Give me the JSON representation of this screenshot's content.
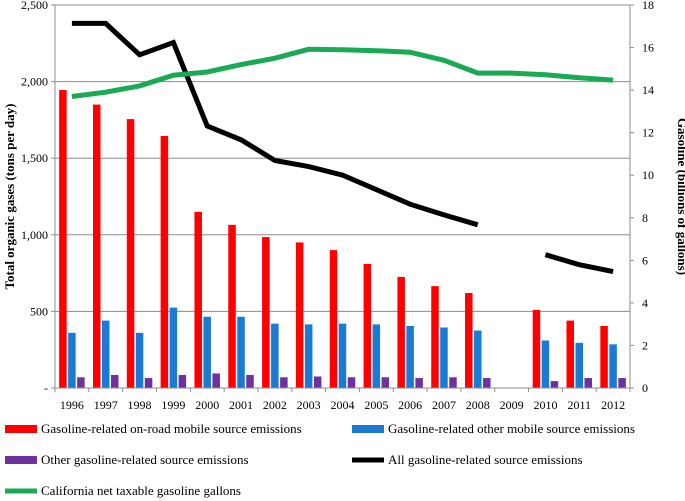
{
  "chart_data": {
    "type": "bar",
    "categories": [
      "1996",
      "1997",
      "1998",
      "1999",
      "2000",
      "2001",
      "2002",
      "2003",
      "2004",
      "2005",
      "2006",
      "2007",
      "2008",
      "2009",
      "2010",
      "2011",
      "2012"
    ],
    "y_left": {
      "label": "Total organic gases  (tons per day)",
      "range": [
        0,
        2500
      ],
      "ticks": [
        0,
        500,
        1000,
        1500,
        2000,
        2500
      ],
      "tick_labels": [
        "-",
        "500",
        "1,000",
        "1,500",
        "2,000",
        "2,500"
      ]
    },
    "y_right": {
      "label": "Gasoline (billions of gallons)",
      "range": [
        0,
        18
      ],
      "ticks": [
        0,
        2,
        4,
        6,
        8,
        10,
        12,
        14,
        16,
        18
      ],
      "tick_labels": [
        "0",
        "2",
        "4",
        "6",
        "8",
        "10",
        "12",
        "14",
        "16",
        "18"
      ]
    },
    "gridlines": true,
    "series": [
      {
        "name": "Gasoline-related on-road mobile source emissions",
        "kind": "bar",
        "axis": "left",
        "color": "#ff0000",
        "values": [
          1945,
          1850,
          1755,
          1645,
          1150,
          1065,
          985,
          950,
          900,
          810,
          725,
          665,
          620,
          null,
          510,
          440,
          405
        ]
      },
      {
        "name": "Gasoline-related other mobile source emissions",
        "kind": "bar",
        "axis": "left",
        "color": "#1a7ad4",
        "values": [
          360,
          440,
          360,
          525,
          465,
          465,
          420,
          415,
          420,
          415,
          405,
          395,
          375,
          null,
          310,
          295,
          285
        ]
      },
      {
        "name": "Other gasoline-related source emissions",
        "kind": "bar",
        "axis": "left",
        "color": "#7030a0",
        "values": [
          70,
          85,
          65,
          85,
          95,
          85,
          70,
          75,
          70,
          70,
          65,
          70,
          65,
          null,
          45,
          65,
          65
        ]
      },
      {
        "name": "All gasoline-related source emissions",
        "kind": "line",
        "axis": "left",
        "color": "#000000",
        "values": [
          2380,
          2380,
          2175,
          2255,
          1710,
          1620,
          1485,
          1445,
          1390,
          1295,
          1200,
          1130,
          1065,
          null,
          870,
          805,
          760
        ]
      },
      {
        "name": "California net taxable gasoline gallons",
        "kind": "line",
        "axis": "right",
        "color": "#1aaa55",
        "values": [
          13.7,
          13.9,
          14.2,
          14.7,
          14.85,
          15.2,
          15.5,
          15.92,
          15.9,
          15.85,
          15.78,
          15.4,
          14.8,
          14.8,
          14.72,
          14.58,
          14.47
        ]
      }
    ],
    "legend_position": "bottom"
  }
}
